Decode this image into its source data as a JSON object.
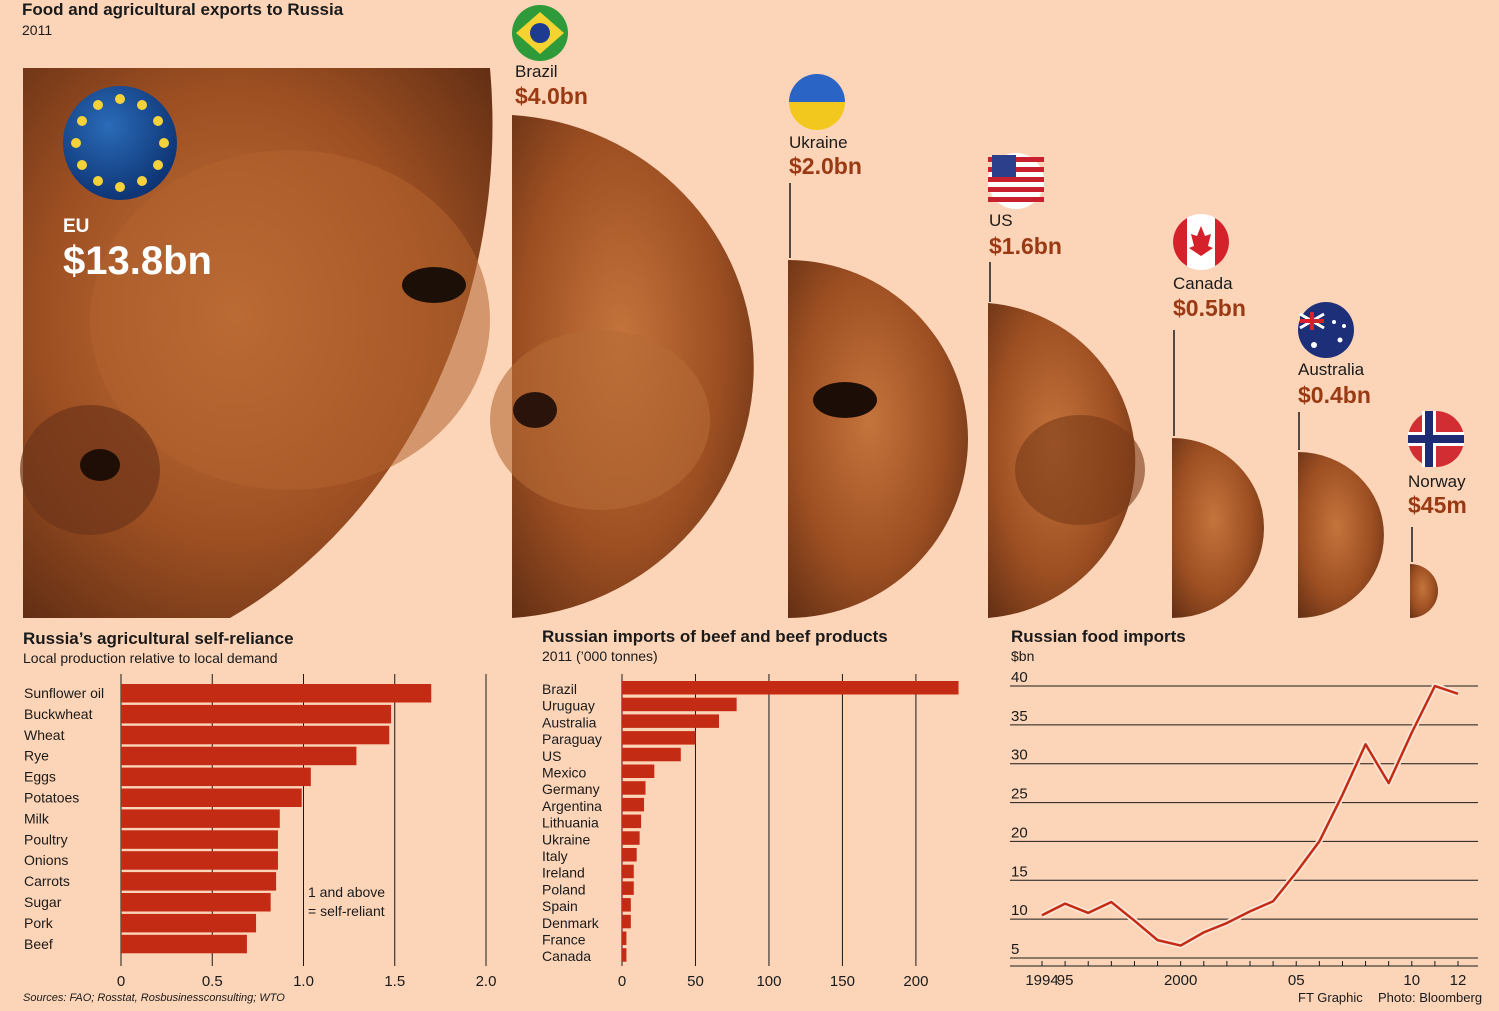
{
  "header": {
    "title": "Food and agricultural exports to Russia",
    "year": "2011"
  },
  "exporters": [
    {
      "name": "EU",
      "value": "$13.8bn",
      "icon": "eu-flag-icon"
    },
    {
      "name": "Brazil",
      "value": "$4.0bn",
      "icon": "brazil-flag-icon"
    },
    {
      "name": "Ukraine",
      "value": "$2.0bn",
      "icon": "ukraine-flag-icon"
    },
    {
      "name": "US",
      "value": "$1.6bn",
      "icon": "us-flag-icon"
    },
    {
      "name": "Canada",
      "value": "$0.5bn",
      "icon": "canada-flag-icon"
    },
    {
      "name": "Australia",
      "value": "$0.4bn",
      "icon": "australia-flag-icon"
    },
    {
      "name": "Norway",
      "value": "$45m",
      "icon": "norway-flag-icon"
    }
  ],
  "colors": {
    "background": "#fcd5b8",
    "bar": "#c42b14",
    "value_text": "#9a3a14",
    "cow": "#a0502a"
  },
  "chart_data": [
    {
      "type": "bar",
      "title": "Russia’s agricultural self-reliance",
      "subtitle": "Local production relative to local demand",
      "orientation": "horizontal",
      "categories": [
        "Sunflower oil",
        "Buckwheat",
        "Wheat",
        "Rye",
        "Eggs",
        "Potatoes",
        "Milk",
        "Poultry",
        "Onions",
        "Carrots",
        "Sugar",
        "Pork",
        "Beef"
      ],
      "values": [
        1.7,
        1.48,
        1.47,
        1.29,
        1.04,
        0.99,
        0.87,
        0.86,
        0.86,
        0.85,
        0.82,
        0.74,
        0.69
      ],
      "xlim": [
        0,
        2.0
      ],
      "xticks": [
        "0",
        "0.5",
        "1.0",
        "1.5",
        "2.0"
      ],
      "annotation": [
        "1 and above",
        "= self-reliant"
      ],
      "grid": true
    },
    {
      "type": "bar",
      "title": "Russian imports of beef and beef products",
      "subtitle": "2011 (’000 tonnes)",
      "orientation": "horizontal",
      "categories": [
        "Brazil",
        "Uruguay",
        "Australia",
        "Paraguay",
        "US",
        "Mexico",
        "Germany",
        "Argentina",
        "Lithuania",
        "Ukraine",
        "Italy",
        "Ireland",
        "Poland",
        "Spain",
        "Denmark",
        "France",
        "Canada"
      ],
      "values": [
        229,
        78,
        66,
        50,
        40,
        22,
        16,
        15,
        13,
        12,
        10,
        8,
        8,
        6,
        6,
        3,
        3
      ],
      "xlim": [
        0,
        230
      ],
      "xticks": [
        "0",
        "50",
        "100",
        "150",
        "200"
      ],
      "grid": true
    },
    {
      "type": "line",
      "title": "Russian food imports",
      "ylabel": "$bn",
      "x": [
        1994,
        1995,
        1996,
        1997,
        1998,
        1999,
        2000,
        2001,
        2002,
        2003,
        2004,
        2005,
        2006,
        2007,
        2008,
        2009,
        2010,
        2011,
        2012
      ],
      "values": [
        10.5,
        12,
        10.8,
        12.2,
        9.8,
        7.3,
        6.6,
        8.3,
        9.5,
        11,
        12.3,
        16,
        20,
        26,
        32.5,
        27.5,
        34,
        40,
        39
      ],
      "ylim": [
        5,
        40
      ],
      "yticks": [
        "5",
        "10",
        "15",
        "20",
        "25",
        "30",
        "35",
        "40"
      ],
      "xticks": [
        "1994",
        "95",
        "2000",
        "05",
        "10",
        "12"
      ],
      "grid": true
    }
  ],
  "footer": {
    "sources": "Sources: FAO; Rosstat, Rosbusinessconsulting; WTO",
    "credit_graphic": "FT Graphic",
    "credit_photo": "Photo: Bloomberg"
  }
}
